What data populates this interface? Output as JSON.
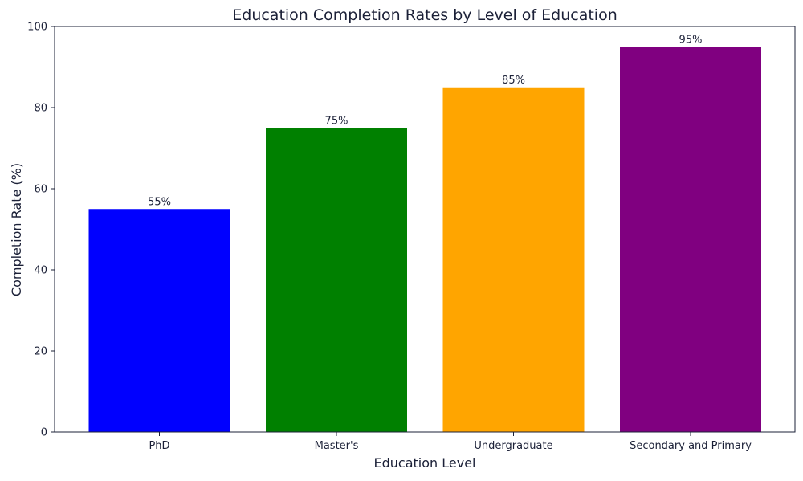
{
  "chart_data": {
    "type": "bar",
    "title": "Education Completion Rates by Level of Education",
    "xlabel": "Education Level",
    "ylabel": "Completion Rate (%)",
    "categories": [
      "PhD",
      "Master's",
      "Undergraduate",
      "Secondary and Primary"
    ],
    "values": [
      55,
      75,
      85,
      95
    ],
    "data_labels": [
      "55%",
      "75%",
      "85%",
      "95%"
    ],
    "colors": [
      "#0000ff",
      "#008000",
      "#ffa500",
      "#800080"
    ],
    "ylim": [
      0,
      100
    ],
    "yticks": [
      0,
      20,
      40,
      60,
      80,
      100
    ],
    "grid": false,
    "legend": "none"
  }
}
